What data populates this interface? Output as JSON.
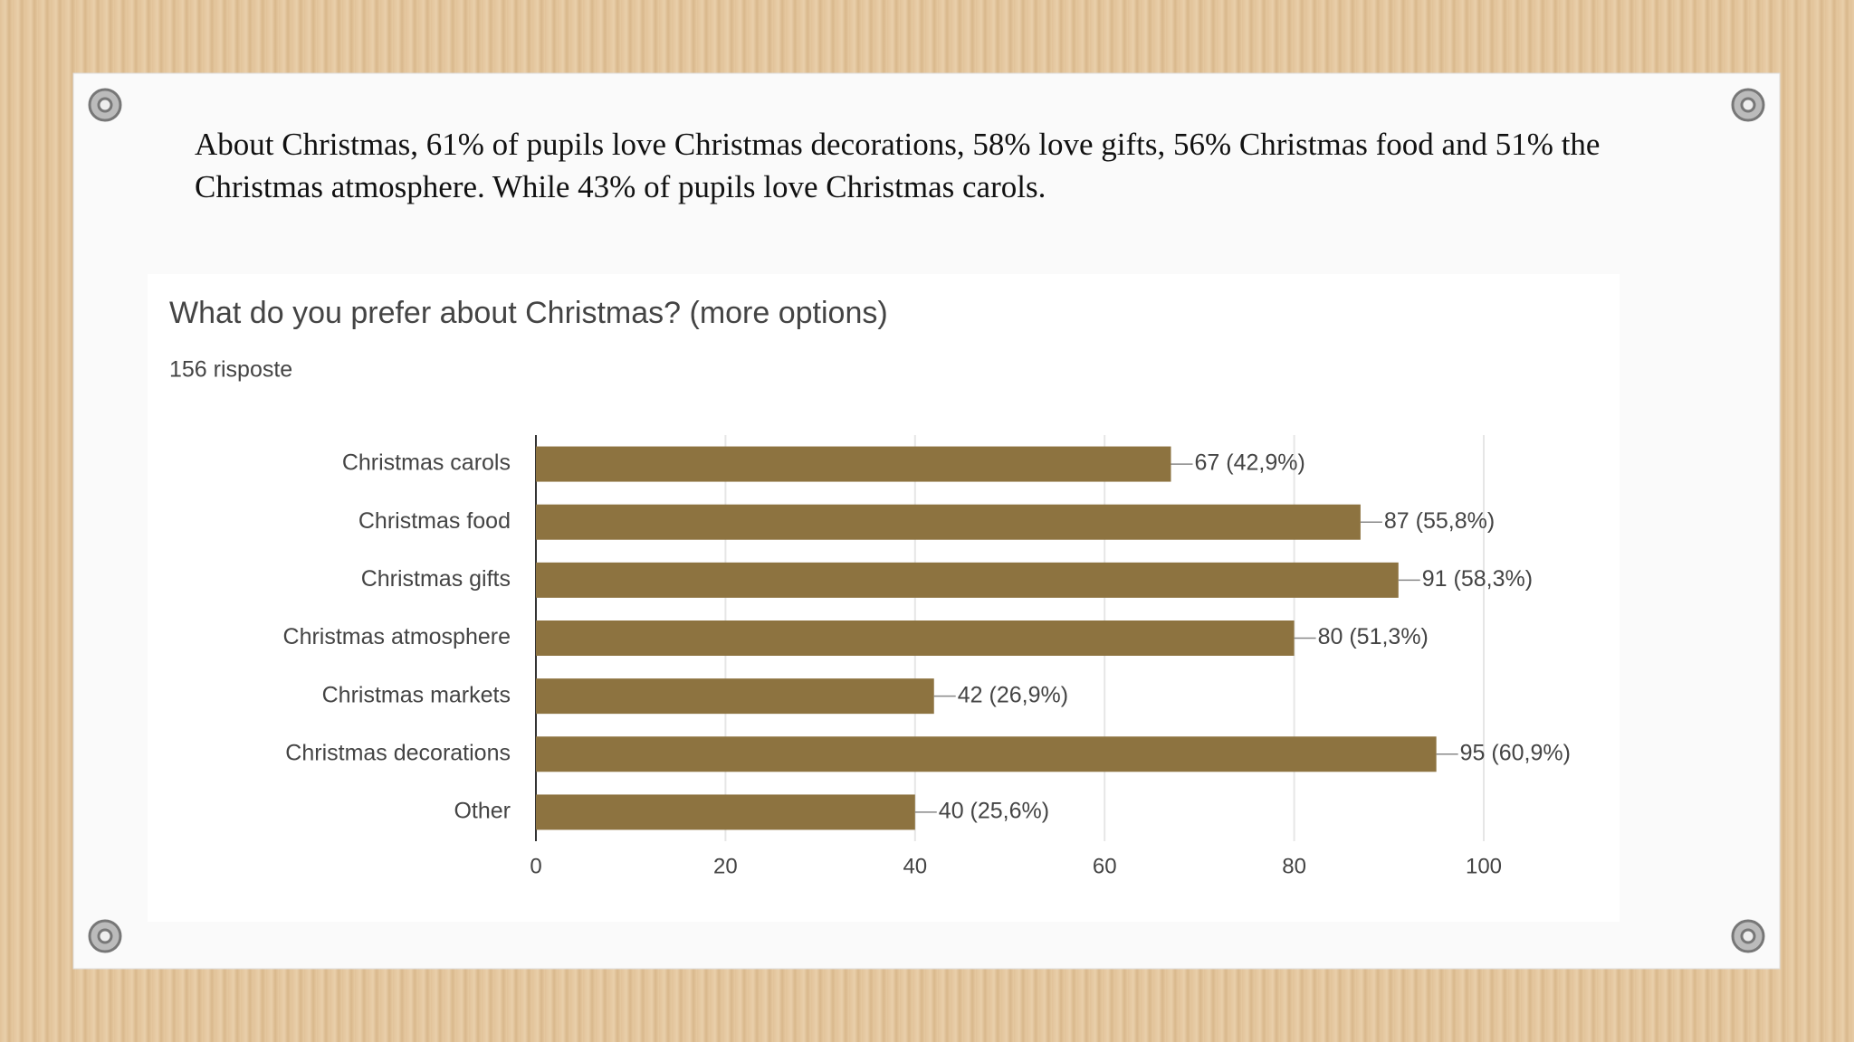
{
  "paragraph": "About Christmas, 61% of pupils love Christmas decorations, 58% love gifts, 56% Christmas food and 51% the Christmas atmosphere. While 43% of pupils love Christmas carols.",
  "chart_data": {
    "type": "bar",
    "orientation": "horizontal",
    "title": "What do you prefer about Christmas? (more options)",
    "subtitle": "156 risposte",
    "categories": [
      "Christmas carols",
      "Christmas food",
      "Christmas gifts",
      "Christmas atmosphere",
      "Christmas markets",
      "Christmas decorations",
      "Other"
    ],
    "values": [
      67,
      87,
      91,
      80,
      42,
      95,
      40
    ],
    "value_labels": [
      "67 (42,9%)",
      "87 (55,8%)",
      "91 (58,3%)",
      "80 (51,3%)",
      "42 (26,9%)",
      "95 (60,9%)",
      "40 (25,6%)"
    ],
    "color": "#8d7340",
    "xlim": [
      0,
      100
    ],
    "xticks": [
      0,
      20,
      40,
      60,
      80,
      100
    ],
    "grid": true
  }
}
